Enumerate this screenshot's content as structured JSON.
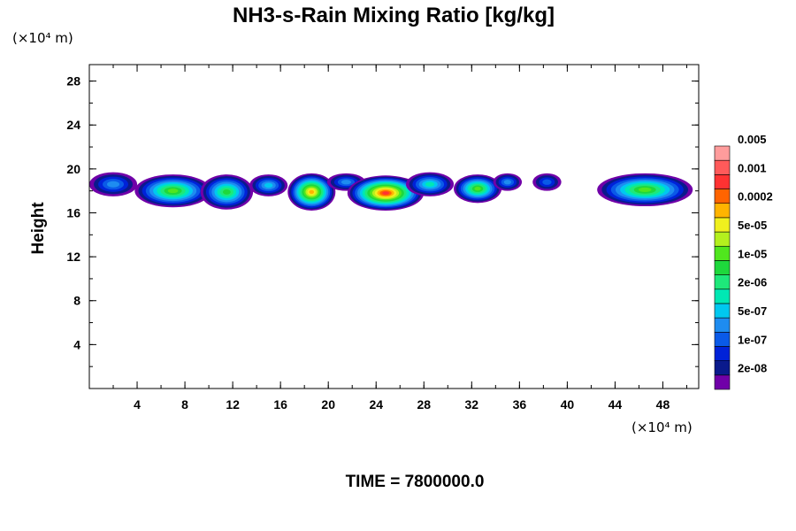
{
  "chart_data": {
    "type": "heatmap",
    "title": "NH3-s-Rain Mixing Ratio [kg/kg]",
    "xlabel": "",
    "ylabel": "Height",
    "x_unit_label": "(×10⁴ m)",
    "y_unit_label": "(×10⁴ m)",
    "xlim": [
      0,
      51
    ],
    "ylim": [
      0,
      29.5
    ],
    "x_ticks": [
      4,
      8,
      12,
      16,
      20,
      24,
      28,
      32,
      36,
      40,
      44,
      48
    ],
    "x_tick_labels": [
      "4",
      "8",
      "12",
      "16",
      "20",
      "24",
      "28",
      "32",
      "36",
      "40",
      "44",
      "48"
    ],
    "y_ticks": [
      4,
      8,
      12,
      16,
      20,
      24,
      28
    ],
    "y_tick_labels": [
      "4",
      "8",
      "12",
      "16",
      "20",
      "24",
      "28"
    ],
    "minor_tick_step": 2,
    "colorbar": {
      "colors": [
        "#7000a8",
        "#0a1a8c",
        "#0022d8",
        "#0a5ae8",
        "#1e8cf0",
        "#00c8f0",
        "#00e8b4",
        "#1ee87a",
        "#1ed83c",
        "#50e61e",
        "#b4f01e",
        "#f0f01e",
        "#ffb400",
        "#ff6400",
        "#ff3232",
        "#ff5a5a",
        "#ff9c9c"
      ],
      "labels": [
        "2e-08",
        "1e-07",
        "5e-07",
        "2e-06",
        "1e-05",
        "5e-05",
        "0.0002",
        "0.001",
        "0.005"
      ]
    },
    "blobs": [
      {
        "x": 2.0,
        "y": 18.6,
        "w": 2.0,
        "h": 1.1,
        "peak": 4
      },
      {
        "x": 7.0,
        "y": 18.0,
        "w": 3.2,
        "h": 1.5,
        "peak": 9
      },
      {
        "x": 11.5,
        "y": 17.9,
        "w": 2.2,
        "h": 1.6,
        "peak": 8
      },
      {
        "x": 15.0,
        "y": 18.5,
        "w": 1.6,
        "h": 1.0,
        "peak": 5
      },
      {
        "x": 18.6,
        "y": 17.9,
        "w": 2.0,
        "h": 1.7,
        "peak": 12
      },
      {
        "x": 21.5,
        "y": 18.8,
        "w": 1.6,
        "h": 0.8,
        "peak": 4
      },
      {
        "x": 24.8,
        "y": 17.8,
        "w": 3.2,
        "h": 1.6,
        "peak": 14
      },
      {
        "x": 28.5,
        "y": 18.6,
        "w": 2.0,
        "h": 1.1,
        "peak": 6
      },
      {
        "x": 32.5,
        "y": 18.2,
        "w": 2.0,
        "h": 1.3,
        "peak": 9
      },
      {
        "x": 35.0,
        "y": 18.8,
        "w": 1.2,
        "h": 0.8,
        "peak": 4
      },
      {
        "x": 38.3,
        "y": 18.8,
        "w": 1.2,
        "h": 0.8,
        "peak": 3
      },
      {
        "x": 46.5,
        "y": 18.1,
        "w": 4.0,
        "h": 1.5,
        "peak": 9
      }
    ]
  },
  "footer": {
    "time_label": "TIME = 7800000.0"
  }
}
